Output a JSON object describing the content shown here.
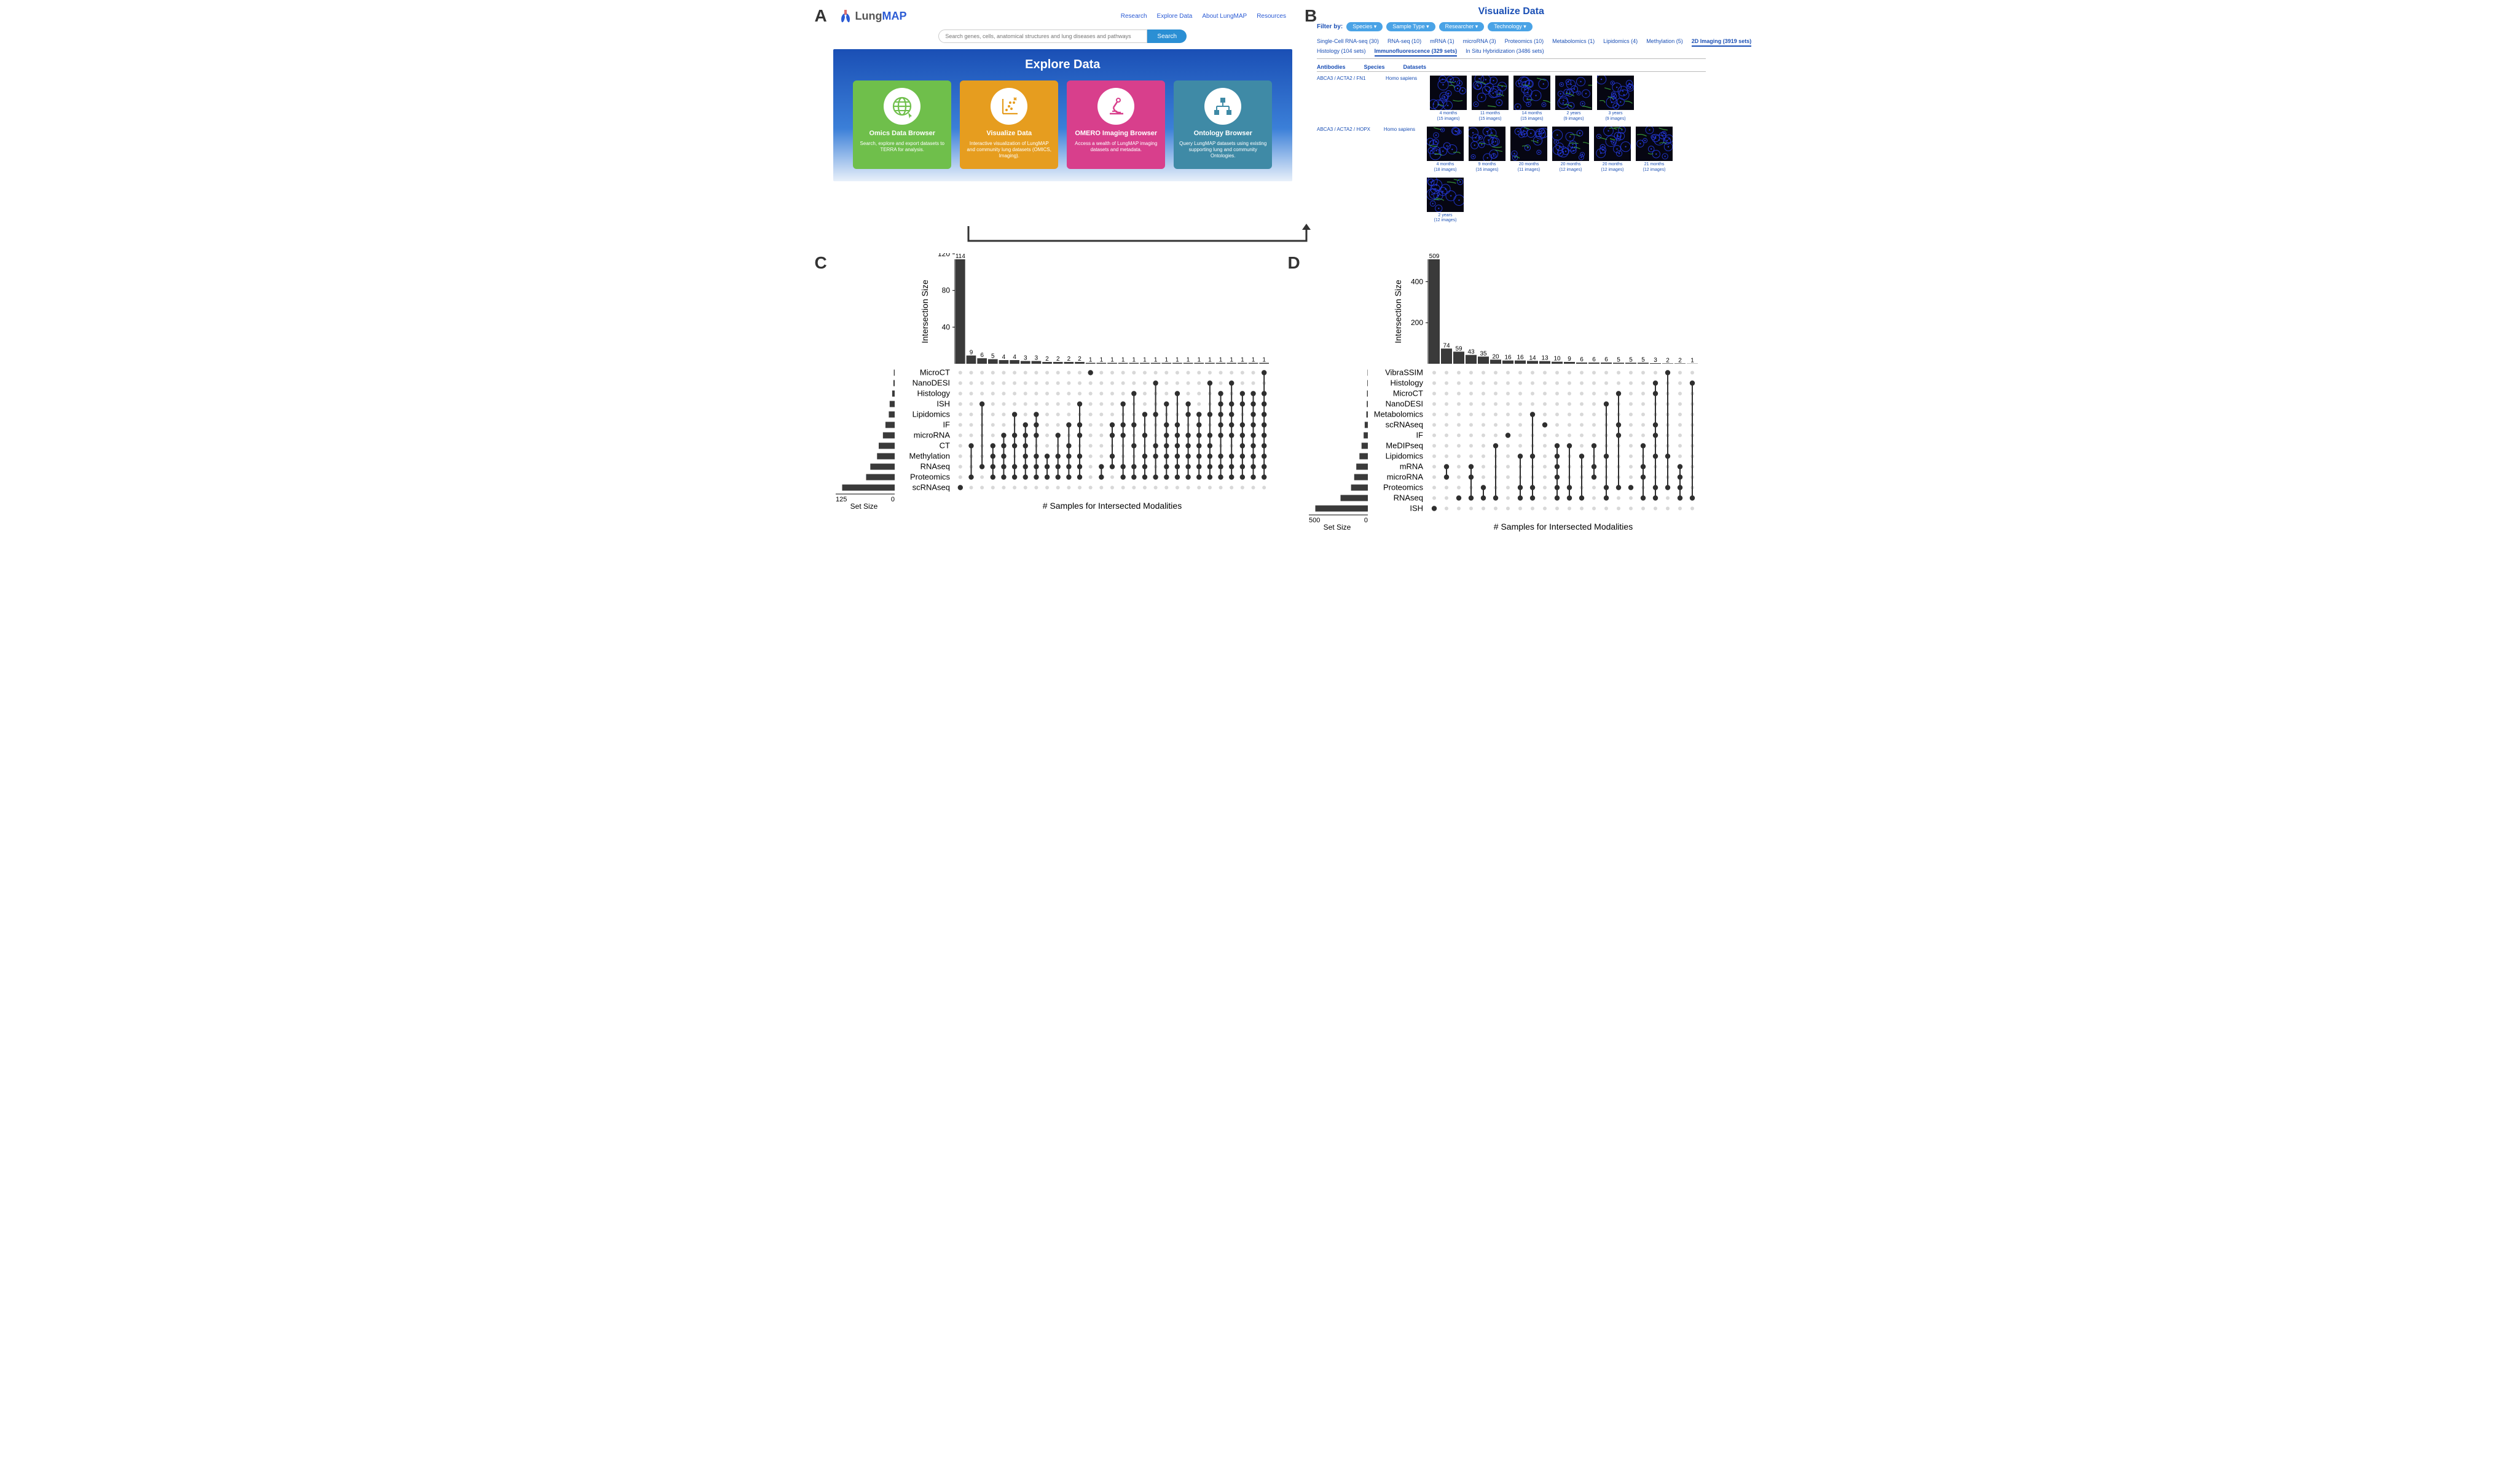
{
  "A": {
    "logo": {
      "lung": "Lung",
      "map": "MAP"
    },
    "nav": [
      "Research",
      "Explore Data",
      "About LungMAP",
      "Resources"
    ],
    "search": {
      "placeholder": "Search genes, cells, anatomical structures and lung diseases and pathways",
      "button": "Search"
    },
    "hero_title": "Explore Data",
    "cards": [
      {
        "color": "#6fbf4b",
        "icon": "globe",
        "title": "Omics Data Browser",
        "desc": "Search, explore and export datasets to TERRA for analysis."
      },
      {
        "color": "#e69d1f",
        "icon": "scatter",
        "title": "Visualize Data",
        "desc": "Interactive visualization of LungMAP and community lung datasets (OMICS, Imaging)."
      },
      {
        "color": "#d83f8c",
        "icon": "microscope",
        "title": "OMERO Imaging Browser",
        "desc": "Access a wealth of LungMAP imaging datasets and metadata."
      },
      {
        "color": "#3f8aa6",
        "icon": "tree",
        "title": "Ontology Browser",
        "desc": "Query LungMAP datasets using existing supporting lung and community Ontologies."
      }
    ]
  },
  "B": {
    "title": "Visualize Data",
    "filter_label": "Filter by:",
    "filter_pills": [
      "Species",
      "Sample Type",
      "Researcher",
      "Technology"
    ],
    "tabs_line1": [
      "Single-Cell RNA-seq (30)",
      "RNA-seq (10)",
      "mRNA (1)",
      "microRNA (3)",
      "Proteomics (10)",
      "Metabolomics (1)",
      "Lipidomics (4)",
      "Methylation (5)",
      "2D Imaging (3919 sets)"
    ],
    "tabs_line1_selected": 8,
    "tabs_line2": [
      "Histology (104 sets)",
      "Immunofluorescence (329 sets)",
      "In Situ Hybridization (3486 sets)"
    ],
    "tabs_line2_selected": 1,
    "col_headers": [
      "Antibodies",
      "Species",
      "Datasets"
    ],
    "rows": [
      {
        "antibodies": "ABCA3 / ACTA2 / FN1",
        "species": "Homo sapiens",
        "thumbs": [
          {
            "age": "4 months",
            "n": "(15 images)"
          },
          {
            "age": "11 months",
            "n": "(15 images)"
          },
          {
            "age": "14 months",
            "n": "(15 images)"
          },
          {
            "age": "2 years",
            "n": "(9 images)"
          },
          {
            "age": "3 years",
            "n": "(9 images)"
          }
        ]
      },
      {
        "antibodies": "ABCA3 / ACTA2 / HOPX",
        "species": "Homo sapiens",
        "thumbs": [
          {
            "age": "4 months",
            "n": "(18 images)"
          },
          {
            "age": "9 months",
            "n": "(16 images)"
          },
          {
            "age": "20 months",
            "n": "(11 images)"
          },
          {
            "age": "20 months",
            "n": "(12 images)"
          },
          {
            "age": "20 months",
            "n": "(12 images)"
          },
          {
            "age": "21 months",
            "n": "(12 images)"
          },
          {
            "age": "2 years",
            "n": "(12 images)"
          }
        ]
      }
    ]
  },
  "C": {
    "ylabel": "Intersection Size",
    "xlabel": "# Samples for Intersected Modalities",
    "setsize_label": "Set Size",
    "setsize_max": 125,
    "yticks": [
      40,
      80,
      120
    ],
    "bar_color": "#3a3a3a",
    "dot_color": "#2f2f2f",
    "grid_dot": "#d8d8d8",
    "label_fontsize": 14,
    "sets": [
      {
        "name": "MicroCT",
        "size": 2
      },
      {
        "name": "NanoDESI",
        "size": 3
      },
      {
        "name": "Histology",
        "size": 6
      },
      {
        "name": "ISH",
        "size": 12
      },
      {
        "name": "Lipidomics",
        "size": 14
      },
      {
        "name": "IF",
        "size": 22
      },
      {
        "name": "microRNA",
        "size": 28
      },
      {
        "name": "CT",
        "size": 38
      },
      {
        "name": "Methylation",
        "size": 42
      },
      {
        "name": "RNAseq",
        "size": 58
      },
      {
        "name": "Proteomics",
        "size": 68
      },
      {
        "name": "scRNAseq",
        "size": 125
      }
    ],
    "intersections": [
      {
        "v": 114,
        "m": [
          "scRNAseq"
        ]
      },
      {
        "v": 9,
        "m": [
          "CT",
          "Proteomics"
        ]
      },
      {
        "v": 6,
        "m": [
          "ISH",
          "RNAseq"
        ]
      },
      {
        "v": 5,
        "m": [
          "CT",
          "Methylation",
          "RNAseq",
          "Proteomics"
        ]
      },
      {
        "v": 4,
        "m": [
          "microRNA",
          "CT",
          "Methylation",
          "RNAseq",
          "Proteomics"
        ]
      },
      {
        "v": 4,
        "m": [
          "Lipidomics",
          "microRNA",
          "CT",
          "RNAseq",
          "Proteomics"
        ]
      },
      {
        "v": 3,
        "m": [
          "IF",
          "microRNA",
          "CT",
          "Methylation",
          "RNAseq",
          "Proteomics"
        ]
      },
      {
        "v": 3,
        "m": [
          "Lipidomics",
          "IF",
          "microRNA",
          "Methylation",
          "RNAseq",
          "Proteomics"
        ]
      },
      {
        "v": 2,
        "m": [
          "Methylation",
          "RNAseq",
          "Proteomics"
        ]
      },
      {
        "v": 2,
        "m": [
          "microRNA",
          "Methylation",
          "RNAseq",
          "Proteomics"
        ]
      },
      {
        "v": 2,
        "m": [
          "IF",
          "CT",
          "Methylation",
          "RNAseq",
          "Proteomics"
        ]
      },
      {
        "v": 2,
        "m": [
          "ISH",
          "IF",
          "microRNA",
          "Methylation",
          "RNAseq",
          "Proteomics"
        ]
      },
      {
        "v": 1,
        "m": [
          "MicroCT"
        ]
      },
      {
        "v": 1,
        "m": [
          "RNAseq",
          "Proteomics"
        ]
      },
      {
        "v": 1,
        "m": [
          "IF",
          "microRNA",
          "Methylation",
          "RNAseq"
        ]
      },
      {
        "v": 1,
        "m": [
          "ISH",
          "IF",
          "microRNA",
          "RNAseq",
          "Proteomics"
        ]
      },
      {
        "v": 1,
        "m": [
          "Histology",
          "IF",
          "CT",
          "RNAseq",
          "Proteomics"
        ]
      },
      {
        "v": 1,
        "m": [
          "Lipidomics",
          "microRNA",
          "Methylation",
          "RNAseq",
          "Proteomics"
        ]
      },
      {
        "v": 1,
        "m": [
          "NanoDESI",
          "Lipidomics",
          "CT",
          "Methylation",
          "Proteomics"
        ]
      },
      {
        "v": 1,
        "m": [
          "ISH",
          "IF",
          "microRNA",
          "CT",
          "Methylation",
          "RNAseq",
          "Proteomics"
        ]
      },
      {
        "v": 1,
        "m": [
          "Histology",
          "IF",
          "microRNA",
          "CT",
          "Methylation",
          "RNAseq",
          "Proteomics"
        ]
      },
      {
        "v": 1,
        "m": [
          "ISH",
          "Lipidomics",
          "microRNA",
          "CT",
          "Methylation",
          "RNAseq",
          "Proteomics"
        ]
      },
      {
        "v": 1,
        "m": [
          "Lipidomics",
          "IF",
          "microRNA",
          "CT",
          "Methylation",
          "RNAseq",
          "Proteomics"
        ]
      },
      {
        "v": 1,
        "m": [
          "NanoDESI",
          "Lipidomics",
          "microRNA",
          "CT",
          "Methylation",
          "RNAseq",
          "Proteomics"
        ]
      },
      {
        "v": 1,
        "m": [
          "Histology",
          "ISH",
          "Lipidomics",
          "IF",
          "microRNA",
          "Methylation",
          "RNAseq",
          "Proteomics"
        ]
      },
      {
        "v": 1,
        "m": [
          "NanoDESI",
          "ISH",
          "Lipidomics",
          "IF",
          "microRNA",
          "Methylation",
          "RNAseq",
          "Proteomics"
        ]
      },
      {
        "v": 1,
        "m": [
          "Histology",
          "ISH",
          "IF",
          "microRNA",
          "CT",
          "Methylation",
          "RNAseq",
          "Proteomics"
        ]
      },
      {
        "v": 1,
        "m": [
          "Histology",
          "ISH",
          "Lipidomics",
          "IF",
          "microRNA",
          "CT",
          "Methylation",
          "RNAseq",
          "Proteomics"
        ]
      },
      {
        "v": 1,
        "m": [
          "MicroCT",
          "Histology",
          "ISH",
          "Lipidomics",
          "IF",
          "microRNA",
          "CT",
          "Methylation",
          "RNAseq",
          "Proteomics"
        ]
      }
    ]
  },
  "D": {
    "ylabel": "Intersection Size",
    "xlabel": "# Samples for Intersected Modalities",
    "setsize_label": "Set Size",
    "setsize_max": 500,
    "yticks": [
      200,
      400
    ],
    "bar_color": "#3a3a3a",
    "dot_color": "#2f2f2f",
    "grid_dot": "#d8d8d8",
    "label_fontsize": 14,
    "sets": [
      {
        "name": "VibraSSIM",
        "size": 3
      },
      {
        "name": "Histology",
        "size": 5
      },
      {
        "name": "MicroCT",
        "size": 8
      },
      {
        "name": "NanoDESI",
        "size": 10
      },
      {
        "name": "Metabolomics",
        "size": 14
      },
      {
        "name": "scRNAseq",
        "size": 30
      },
      {
        "name": "IF",
        "size": 40
      },
      {
        "name": "MeDIPseq",
        "size": 60
      },
      {
        "name": "Lipidomics",
        "size": 80
      },
      {
        "name": "mRNA",
        "size": 110
      },
      {
        "name": "microRNA",
        "size": 130
      },
      {
        "name": "Proteomics",
        "size": 160
      },
      {
        "name": "RNAseq",
        "size": 260
      },
      {
        "name": "ISH",
        "size": 500
      }
    ],
    "intersections": [
      {
        "v": 509,
        "m": [
          "ISH"
        ]
      },
      {
        "v": 74,
        "m": [
          "mRNA",
          "microRNA"
        ]
      },
      {
        "v": 59,
        "m": [
          "RNAseq"
        ]
      },
      {
        "v": 43,
        "m": [
          "mRNA",
          "microRNA",
          "RNAseq"
        ]
      },
      {
        "v": 35,
        "m": [
          "Proteomics",
          "RNAseq"
        ]
      },
      {
        "v": 20,
        "m": [
          "MeDIPseq",
          "RNAseq"
        ]
      },
      {
        "v": 16,
        "m": [
          "IF"
        ]
      },
      {
        "v": 16,
        "m": [
          "Lipidomics",
          "Proteomics",
          "RNAseq"
        ]
      },
      {
        "v": 14,
        "m": [
          "Metabolomics",
          "Lipidomics",
          "Proteomics",
          "RNAseq"
        ]
      },
      {
        "v": 13,
        "m": [
          "scRNAseq"
        ]
      },
      {
        "v": 10,
        "m": [
          "MeDIPseq",
          "Lipidomics",
          "mRNA",
          "microRNA",
          "Proteomics",
          "RNAseq"
        ]
      },
      {
        "v": 9,
        "m": [
          "MeDIPseq",
          "Proteomics",
          "RNAseq"
        ]
      },
      {
        "v": 6,
        "m": [
          "Lipidomics",
          "RNAseq"
        ]
      },
      {
        "v": 6,
        "m": [
          "MeDIPseq",
          "mRNA",
          "microRNA"
        ]
      },
      {
        "v": 6,
        "m": [
          "NanoDESI",
          "Lipidomics",
          "Proteomics",
          "RNAseq"
        ]
      },
      {
        "v": 5,
        "m": [
          "MicroCT",
          "scRNAseq",
          "IF",
          "Proteomics"
        ]
      },
      {
        "v": 5,
        "m": [
          "Proteomics"
        ]
      },
      {
        "v": 5,
        "m": [
          "MeDIPseq",
          "mRNA",
          "microRNA",
          "RNAseq"
        ]
      },
      {
        "v": 3,
        "m": [
          "Histology",
          "MicroCT",
          "scRNAseq",
          "IF",
          "Lipidomics",
          "Proteomics",
          "RNAseq"
        ]
      },
      {
        "v": 2,
        "m": [
          "VibraSSIM",
          "Lipidomics",
          "Proteomics"
        ]
      },
      {
        "v": 2,
        "m": [
          "mRNA",
          "microRNA",
          "Proteomics",
          "RNAseq"
        ]
      },
      {
        "v": 1,
        "m": [
          "Histology",
          "RNAseq"
        ]
      }
    ]
  }
}
